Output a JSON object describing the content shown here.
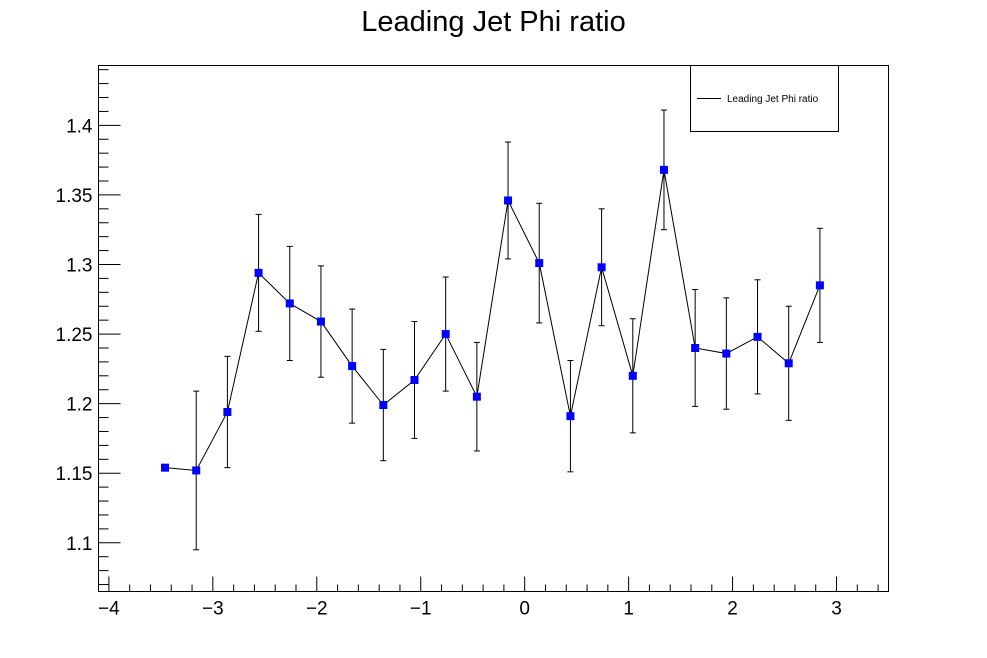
{
  "chart_data": {
    "type": "line",
    "title": "Leading Jet Phi ratio",
    "xlabel": "",
    "ylabel": "",
    "xlim": [
      -4.1,
      3.5
    ],
    "ylim": [
      1.065,
      1.443
    ],
    "x_ticks": [
      -4,
      -3,
      -2,
      -1,
      0,
      1,
      2,
      3
    ],
    "x_tick_labels": [
      "−4",
      "−3",
      "−2",
      "−1",
      "0",
      "1",
      "2",
      "3"
    ],
    "y_ticks": [
      1.1,
      1.15,
      1.2,
      1.25,
      1.3,
      1.35,
      1.4
    ],
    "y_tick_labels": [
      "1.1",
      "1.15",
      "1.2",
      "1.25",
      "1.3",
      "1.35",
      "1.4"
    ],
    "grid": false,
    "legend": {
      "position": "top-right",
      "entries": [
        "Leading Jet Phi ratio"
      ]
    },
    "colors": {
      "marker": "#0000ff",
      "line": "#000000"
    },
    "series": [
      {
        "name": "Leading Jet Phi ratio",
        "x": [
          -3.46,
          -3.16,
          -2.86,
          -2.56,
          -2.26,
          -1.96,
          -1.66,
          -1.36,
          -1.06,
          -0.76,
          -0.46,
          -0.16,
          0.14,
          0.44,
          0.74,
          1.04,
          1.34,
          1.64,
          1.94,
          2.24,
          2.54,
          2.84
        ],
        "y": [
          1.154,
          1.152,
          1.194,
          1.294,
          1.272,
          1.259,
          1.227,
          1.199,
          1.217,
          1.25,
          1.205,
          1.346,
          1.301,
          1.191,
          1.298,
          1.22,
          1.368,
          1.24,
          1.236,
          1.248,
          1.229,
          1.285
        ],
        "y_err": [
          0.0,
          0.057,
          0.04,
          0.042,
          0.041,
          0.04,
          0.041,
          0.04,
          0.042,
          0.041,
          0.039,
          0.042,
          0.043,
          0.04,
          0.042,
          0.041,
          0.043,
          0.042,
          0.04,
          0.041,
          0.041,
          0.041
        ]
      }
    ]
  }
}
